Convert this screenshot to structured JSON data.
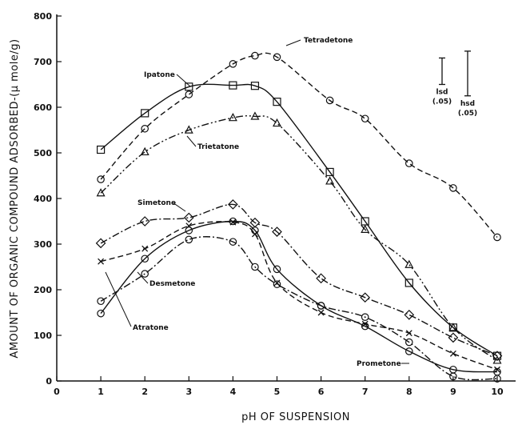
{
  "chart_data": {
    "type": "line",
    "xlabel": "pH OF SUSPENSION",
    "ylabel": "AMOUNT OF ORGANIC COMPOUND ADSORBED-(μ mole/g)",
    "xlim": [
      0,
      10.6
    ],
    "ylim": [
      0,
      800
    ],
    "x_ticks": [
      0,
      1,
      2,
      3,
      4,
      5,
      6,
      7,
      8,
      9,
      10
    ],
    "y_ticks": [
      0,
      100,
      200,
      300,
      400,
      500,
      600,
      700,
      800
    ],
    "grid": false,
    "significance_bars": [
      {
        "label_top": "lsd",
        "label_bottom": "(.05)",
        "low": 650,
        "high": 708
      },
      {
        "label_top": "hsd",
        "label_bottom": "(.05)",
        "low": 625,
        "high": 723
      }
    ],
    "series": [
      {
        "name": "Tetradetone",
        "marker": "circle",
        "line": "dashed",
        "points": [
          [
            1.0,
            442
          ],
          [
            2.0,
            553
          ],
          [
            3.0,
            628
          ],
          [
            4.0,
            695
          ],
          [
            4.5,
            713
          ],
          [
            5.0,
            710
          ],
          [
            6.2,
            615
          ],
          [
            7.0,
            575
          ],
          [
            8.0,
            477
          ],
          [
            9.0,
            423
          ],
          [
            10.0,
            315
          ]
        ]
      },
      {
        "name": "Ipatone",
        "marker": "square",
        "line": "solid",
        "points": [
          [
            1.0,
            507
          ],
          [
            2.0,
            587
          ],
          [
            3.0,
            645
          ],
          [
            4.0,
            648
          ],
          [
            4.5,
            647
          ],
          [
            5.0,
            612
          ],
          [
            6.2,
            458
          ],
          [
            7.0,
            350
          ],
          [
            8.0,
            215
          ],
          [
            9.0,
            117
          ],
          [
            10.0,
            55
          ]
        ]
      },
      {
        "name": "Trietatone",
        "marker": "triangle",
        "line": "dash-dot-dot",
        "points": [
          [
            1.0,
            412
          ],
          [
            2.0,
            502
          ],
          [
            3.0,
            550
          ],
          [
            4.0,
            577
          ],
          [
            4.5,
            580
          ],
          [
            5.0,
            565
          ],
          [
            6.2,
            438
          ],
          [
            7.0,
            332
          ],
          [
            8.0,
            255
          ],
          [
            9.0,
            117
          ],
          [
            10.0,
            45
          ]
        ]
      },
      {
        "name": "Simetone",
        "marker": "diamond",
        "line": "dash-dot",
        "points": [
          [
            1.0,
            302
          ],
          [
            2.0,
            350
          ],
          [
            3.0,
            358
          ],
          [
            4.0,
            387
          ],
          [
            4.5,
            347
          ],
          [
            5.0,
            327
          ],
          [
            6.0,
            225
          ],
          [
            7.0,
            183
          ],
          [
            8.0,
            145
          ],
          [
            9.0,
            95
          ],
          [
            10.0,
            55
          ]
        ]
      },
      {
        "name": "Desmetone",
        "marker": "x",
        "line": "dashed",
        "points": [
          [
            1.0,
            262
          ],
          [
            2.0,
            290
          ],
          [
            3.0,
            340
          ],
          [
            4.0,
            348
          ],
          [
            4.5,
            322
          ],
          [
            5.0,
            215
          ],
          [
            6.0,
            150
          ],
          [
            7.0,
            125
          ],
          [
            8.0,
            105
          ],
          [
            9.0,
            60
          ],
          [
            10.0,
            25
          ]
        ]
      },
      {
        "name": "Atratone",
        "marker": "circle",
        "line": "solid",
        "points": [
          [
            1.0,
            148
          ],
          [
            2.0,
            268
          ],
          [
            3.0,
            330
          ],
          [
            4.0,
            350
          ],
          [
            4.5,
            330
          ],
          [
            5.0,
            245
          ],
          [
            6.0,
            165
          ],
          [
            7.0,
            120
          ],
          [
            8.0,
            65
          ],
          [
            9.0,
            25
          ],
          [
            10.0,
            20
          ]
        ]
      },
      {
        "name": "Prometone",
        "marker": "circle",
        "line": "dash-dot",
        "points": [
          [
            1.0,
            175
          ],
          [
            2.0,
            235
          ],
          [
            3.0,
            310
          ],
          [
            4.0,
            305
          ],
          [
            4.5,
            250
          ],
          [
            5.0,
            212
          ],
          [
            6.0,
            165
          ],
          [
            7.0,
            140
          ],
          [
            8.0,
            85
          ],
          [
            9.0,
            10
          ],
          [
            10.0,
            5
          ]
        ]
      }
    ]
  }
}
